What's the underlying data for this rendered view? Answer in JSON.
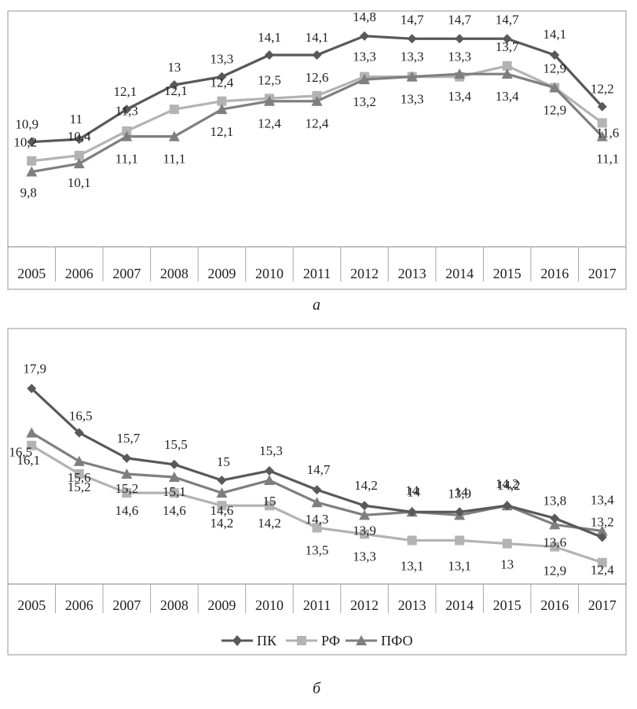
{
  "colors": {
    "pk": "#595959",
    "rf": "#b3b3b3",
    "pfo": "#7f7f7f",
    "frame": "#a6a6a6",
    "axis": "#808080",
    "text": "#222222"
  },
  "panel_a_caption": "а",
  "panel_b_caption": "б",
  "legend": {
    "pk": "ПК",
    "rf": "РФ",
    "pfo": "ПФО"
  },
  "chart_data": [
    {
      "type": "line",
      "id": "a",
      "categories": [
        "2005",
        "2006",
        "2007",
        "2008",
        "2009",
        "2010",
        "2011",
        "2012",
        "2013",
        "2014",
        "2015",
        "2016",
        "2017"
      ],
      "ylim": [
        7.5,
        15.2
      ],
      "series": [
        {
          "key": "pk",
          "name": "ПК",
          "marker": "diamond",
          "values": [
            10.9,
            11,
            12.1,
            13,
            13.3,
            14.1,
            14.1,
            14.8,
            14.7,
            14.7,
            14.7,
            14.1,
            12.2
          ],
          "labels": [
            "10,9",
            "11",
            "12,1",
            "13",
            "13,3",
            "14,1",
            "14,1",
            "14,8",
            "14,7",
            "14,7",
            "14,7",
            "14,1",
            "12,2"
          ]
        },
        {
          "key": "rf",
          "name": "РФ",
          "marker": "square",
          "values": [
            10.2,
            10.4,
            11.3,
            12.1,
            12.4,
            12.5,
            12.6,
            13.3,
            13.3,
            13.3,
            13.7,
            12.9,
            11.6
          ],
          "labels": [
            "10,2",
            "10,4",
            "11,3",
            "12,1",
            "12,4",
            "12,5",
            "12,6",
            "13,3",
            "13,3",
            "13,3",
            "13,7",
            "12,9",
            "11,6"
          ]
        },
        {
          "key": "pfo",
          "name": "ПФО",
          "marker": "triangle",
          "values": [
            9.8,
            10.1,
            11.1,
            11.1,
            12.1,
            12.4,
            12.4,
            13.2,
            13.3,
            13.4,
            13.4,
            12.9,
            11.1
          ],
          "labels": [
            "9,8",
            "10,1",
            "11,1",
            "11,1",
            "12,1",
            "12,4",
            "12,4",
            "13,2",
            "13,3",
            "13,4",
            "13,4",
            "12,9",
            "11,1"
          ]
        }
      ]
    },
    {
      "type": "line",
      "id": "b",
      "categories": [
        "2005",
        "2006",
        "2007",
        "2008",
        "2009",
        "2010",
        "2011",
        "2012",
        "2013",
        "2014",
        "2015",
        "2016",
        "2017"
      ],
      "ylim": [
        11.3,
        19.0
      ],
      "series": [
        {
          "key": "pk",
          "name": "ПК",
          "marker": "diamond",
          "values": [
            17.9,
            16.5,
            15.7,
            15.5,
            15,
            15.3,
            14.7,
            14.2,
            14,
            14,
            14.2,
            13.8,
            13.2
          ],
          "labels": [
            "17,9",
            "16,5",
            "15,7",
            "15,5",
            "15",
            "15,3",
            "14,7",
            "14,2",
            "14",
            "14",
            "14,2",
            "13,8",
            "13,2"
          ]
        },
        {
          "key": "rf",
          "name": "РФ",
          "marker": "square",
          "values": [
            16.1,
            15.2,
            14.6,
            14.6,
            14.2,
            14.2,
            13.5,
            13.3,
            13.1,
            13.1,
            13,
            12.9,
            12.4
          ],
          "labels": [
            "16,1",
            "15,2",
            "14,6",
            "14,6",
            "14,2",
            "14,2",
            "13,5",
            "13,3",
            "13,1",
            "13,1",
            "13",
            "12,9",
            "12,4"
          ]
        },
        {
          "key": "pfo",
          "name": "ПФО",
          "marker": "triangle",
          "values": [
            16.5,
            15.6,
            15.2,
            15.1,
            14.6,
            15,
            14.3,
            13.9,
            14,
            13.9,
            14.2,
            13.6,
            13.4
          ],
          "labels": [
            "16,5",
            "15,6",
            "15,2",
            "15,1",
            "14,6",
            "15",
            "14,3",
            "13,9",
            "14",
            "13,9",
            "14,2",
            "13,6",
            "13,4"
          ]
        }
      ]
    }
  ]
}
